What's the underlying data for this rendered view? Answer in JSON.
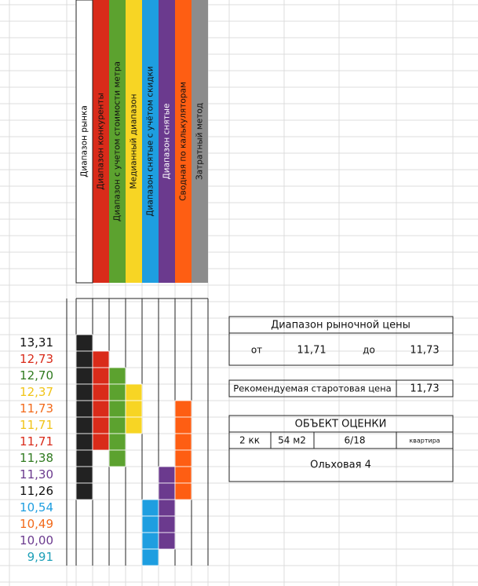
{
  "header_columns": [
    {
      "label": "Диапазон рынка",
      "fill": "#ffffff",
      "color": "#222222",
      "text_color": "#000000"
    },
    {
      "label": "Диапазон конкуренты",
      "fill": "#d92b1a",
      "color": "#d92b1a",
      "text_color": "#111111"
    },
    {
      "label": "Диапазон с учетом стоимости метра",
      "fill": "#5ca22f",
      "color": "#5ca22f",
      "text_color": "#111111"
    },
    {
      "label": "Медианный диапазон",
      "fill": "#f7d524",
      "color": "#f7d524",
      "text_color": "#111111"
    },
    {
      "label": "Диапазон снятые с учётом скидки",
      "fill": "#1e9ee0",
      "color": "#1e9ee0",
      "text_color": "#111111"
    },
    {
      "label": "Диапазон снятые",
      "fill": "#6b3a8e",
      "color": "#6b3a8e",
      "text_color": "#ffffff"
    },
    {
      "label": "Сводная по калькуляторам",
      "fill": "#fe5e13",
      "color": "#fe5e13",
      "text_color": "#111111"
    },
    {
      "label": "Затратный метод",
      "fill": "#8c8c8c",
      "color": "#8c8c8c",
      "text_color": "#111111"
    }
  ],
  "values": [
    {
      "text": "13,31",
      "color": "#111111"
    },
    {
      "text": "12,73",
      "color": "#d92b1a"
    },
    {
      "text": "12,70",
      "color": "#2f7a1f"
    },
    {
      "text": "12,37",
      "color": "#f0c419"
    },
    {
      "text": "11,73",
      "color": "#f26a1b"
    },
    {
      "text": "11,71",
      "color": "#f0c419"
    },
    {
      "text": "11,71",
      "color": "#d92b1a"
    },
    {
      "text": "11,38",
      "color": "#2f7a1f"
    },
    {
      "text": "11,30",
      "color": "#6b3a8e"
    },
    {
      "text": "11,26",
      "color": "#111111"
    },
    {
      "text": "10,54",
      "color": "#1e9ee0"
    },
    {
      "text": "10,49",
      "color": "#f26a1b"
    },
    {
      "text": "10,00",
      "color": "#6b3a8e"
    },
    {
      "text": "9,91",
      "color": "#1ea0b8"
    }
  ],
  "market_range": {
    "title": "Диапазон рыночной цены",
    "from_label": "от",
    "from": "11,71",
    "to_label": "до",
    "to": "11,73"
  },
  "recommended": {
    "label": "Рекомендуемая старотовая цена",
    "value": "11,73"
  },
  "object": {
    "title": "ОБЪЕКТ ОЦЕНКИ",
    "rooms": "2 кк",
    "area": "54 м2",
    "floor": "6/18",
    "type": "квартира",
    "address": "Ольховая 4"
  }
}
